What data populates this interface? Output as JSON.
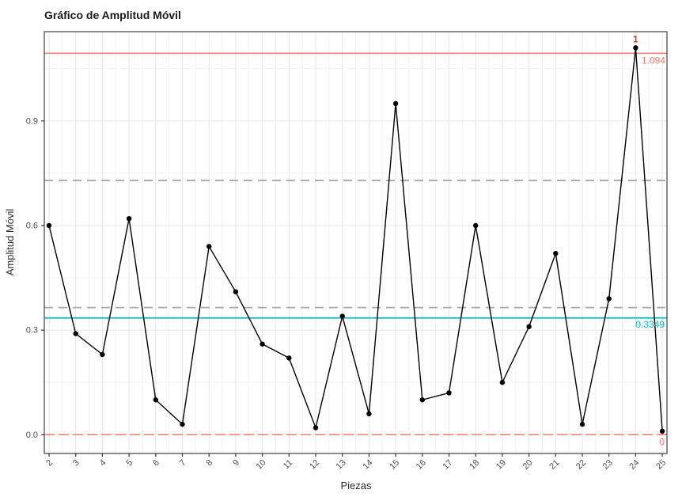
{
  "chart_data": {
    "type": "line",
    "title": "Gráfico de Amplitud Móvil",
    "xlabel": "Piezas",
    "ylabel": "Amplitud Móvil",
    "x": [
      2,
      3,
      4,
      5,
      6,
      7,
      8,
      9,
      10,
      11,
      12,
      13,
      14,
      15,
      16,
      17,
      18,
      19,
      20,
      21,
      22,
      23,
      24,
      25
    ],
    "values": [
      0.6,
      0.29,
      0.23,
      0.62,
      0.1,
      0.03,
      0.54,
      0.41,
      0.26,
      0.22,
      0.02,
      0.34,
      0.06,
      0.95,
      0.1,
      0.12,
      0.6,
      0.15,
      0.31,
      0.52,
      0.03,
      0.39,
      1.11,
      0.01
    ],
    "center_line": 0.3349,
    "ucl": 1.094,
    "lcl": 0,
    "zone_lines": [
      0.3647,
      0.7293
    ],
    "yticks": [
      0.0,
      0.3,
      0.6,
      0.9
    ],
    "ytick_labels": [
      "0.0",
      "0.3",
      "0.6",
      "0.9"
    ],
    "yticks_minor": [
      0.15,
      0.45,
      0.75,
      1.05
    ],
    "labels": {
      "ucl": "1.094",
      "cl": "0.3349",
      "lcl": "0"
    },
    "violation": {
      "x": 24,
      "label": "1"
    },
    "colors": {
      "limit": "#F8766D",
      "center": "#00BFC4",
      "zone": "#A8A8A8",
      "series": "#000000",
      "violation_label": "#E0312E",
      "grid_major": "#E5E5E5",
      "grid_minor": "#F2F2F2",
      "panel_border": "#3F3F3F",
      "tick": "#333333",
      "tick_label": "#4D4D4D"
    },
    "xlim": [
      1.822,
      25.175
    ],
    "ylim": [
      -0.0538,
      1.1562
    ],
    "grid": true,
    "legend": "none"
  }
}
